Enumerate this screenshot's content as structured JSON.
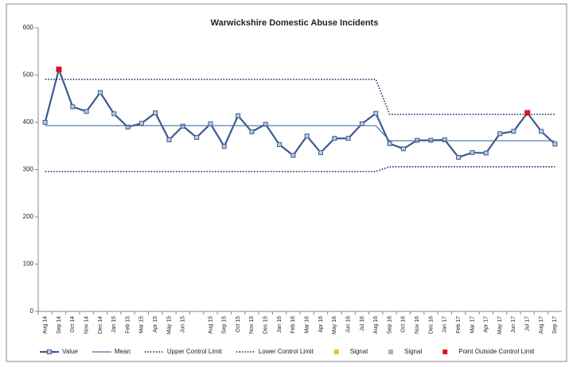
{
  "chart_data": {
    "type": "line",
    "title": "Warwickshire Domestic Abuse Incidents",
    "categories": [
      "Aug 14",
      "Sep 14",
      "Oct 14",
      "Nov 14",
      "Dec 14",
      "Jan 15",
      "Feb 15",
      "Mar 15",
      "Apr 15",
      "May 15",
      "Jun 15",
      null,
      "Aug 15",
      "Sep 15",
      "Oct 15",
      "Nov 15",
      "Dec 15",
      "Jan 16",
      "Feb 16",
      "Mar 16",
      "Apr 16",
      "May 16",
      "Jun 16",
      "Jul 16",
      "Aug 16",
      "Sep 16",
      "Oct 16",
      "Nov 16",
      "Dec 16",
      "Jan 17",
      "Feb 17",
      "Mar 17",
      "Apr 17",
      "May 17",
      "Jun 17",
      "Jul 17",
      "Aug 17",
      "Sep 17"
    ],
    "ylim": [
      0,
      600
    ],
    "yticks": [
      0,
      100,
      200,
      300,
      400,
      500,
      600
    ],
    "grid": false,
    "legend": "bottom",
    "series": [
      {
        "name": "Value",
        "color": "#3b5b8f",
        "style": "marker-line",
        "values": [
          400,
          512,
          433,
          423,
          463,
          418,
          390,
          398,
          420,
          363,
          392,
          368,
          397,
          349,
          414,
          380,
          396,
          353,
          330,
          371,
          336,
          366,
          366,
          397,
          419,
          355,
          344,
          362,
          362,
          363,
          326,
          336,
          335,
          376,
          381,
          420,
          381,
          354
        ]
      },
      {
        "name": "Mean",
        "color": "#4a6fa5",
        "style": "solid",
        "values": [
          393,
          393,
          393,
          393,
          393,
          393,
          393,
          393,
          393,
          393,
          393,
          393,
          393,
          393,
          393,
          393,
          393,
          393,
          393,
          393,
          393,
          393,
          393,
          393,
          393,
          361,
          361,
          361,
          361,
          361,
          361,
          361,
          361,
          361,
          361,
          361,
          361,
          361
        ]
      },
      {
        "name": "Upper Control Limit",
        "color": "#1f3d7a",
        "style": "dotted",
        "values": [
          491,
          491,
          491,
          491,
          491,
          491,
          491,
          491,
          491,
          491,
          491,
          491,
          491,
          491,
          491,
          491,
          491,
          491,
          491,
          491,
          491,
          491,
          491,
          491,
          491,
          417,
          417,
          417,
          417,
          417,
          417,
          417,
          417,
          417,
          417,
          417,
          417,
          417
        ]
      },
      {
        "name": "Lower Control Limit",
        "color": "#1f3d7a",
        "style": "dotted",
        "values": [
          296,
          296,
          296,
          296,
          296,
          296,
          296,
          296,
          296,
          296,
          296,
          296,
          296,
          296,
          296,
          296,
          296,
          296,
          296,
          296,
          296,
          296,
          296,
          296,
          296,
          306,
          306,
          306,
          306,
          306,
          306,
          306,
          306,
          306,
          306,
          306,
          306,
          306
        ]
      },
      {
        "name": "Signal",
        "color": "#f0b840",
        "style": "marker",
        "values": [
          null,
          null,
          null,
          null,
          null,
          null,
          null,
          null,
          null,
          null,
          null,
          null,
          null,
          null,
          null,
          null,
          null,
          null,
          null,
          null,
          null,
          null,
          null,
          null,
          null,
          null,
          null,
          null,
          null,
          null,
          null,
          null,
          null,
          null,
          null,
          null,
          null,
          null
        ]
      },
      {
        "name": "Signal",
        "color": "#c9a0b4",
        "style": "marker",
        "values": [
          null,
          null,
          null,
          null,
          null,
          null,
          null,
          null,
          null,
          null,
          null,
          null,
          null,
          null,
          null,
          null,
          null,
          null,
          null,
          null,
          null,
          null,
          null,
          null,
          null,
          null,
          null,
          null,
          null,
          null,
          null,
          null,
          null,
          null,
          null,
          null,
          null,
          null
        ]
      },
      {
        "name": "Point Outside Control Limit",
        "color": "#e0101e",
        "style": "marker",
        "values": [
          null,
          512,
          null,
          null,
          null,
          null,
          null,
          null,
          null,
          null,
          null,
          null,
          null,
          null,
          null,
          null,
          null,
          null,
          null,
          null,
          null,
          null,
          null,
          null,
          null,
          null,
          null,
          null,
          null,
          null,
          null,
          null,
          null,
          null,
          null,
          420,
          null,
          null
        ]
      }
    ]
  }
}
